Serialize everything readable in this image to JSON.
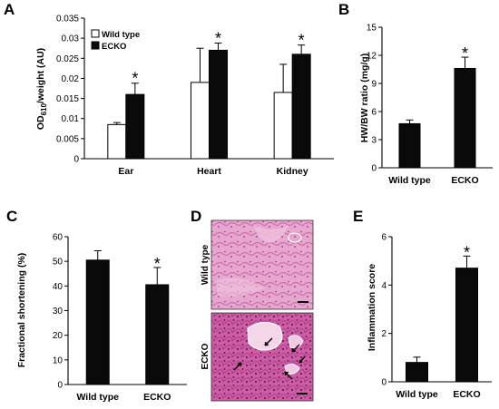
{
  "colors": {
    "black_bar": "#0a0a0a",
    "white_bar": "#ffffff",
    "tissue_pink": "#e7a7cf",
    "tissue_magenta": "#c9509a",
    "tissue_dark": "#7a2a72"
  },
  "panels": {
    "A": {
      "letter": "A"
    },
    "B": {
      "letter": "B"
    },
    "C": {
      "letter": "C"
    },
    "D": {
      "letter": "D",
      "top_label": "Wild type",
      "bottom_label": "ECKO"
    },
    "E": {
      "letter": "E"
    }
  },
  "chart_data": [
    {
      "id": "A",
      "type": "bar",
      "title": "",
      "xlabel": "",
      "ylabel": "OD610/weight (AU)",
      "ylabel_main": "OD",
      "ylabel_sub": "610",
      "ylabel_rest": "/weight (AU)",
      "categories": [
        "Ear",
        "Heart",
        "Kidney"
      ],
      "ylim": [
        0,
        0.035
      ],
      "yticks": [
        "0",
        "0.005",
        "0.01",
        "0.015",
        "0.02",
        "0.025",
        "0.03",
        "0.035"
      ],
      "legend_position": "top-left",
      "series": [
        {
          "name": "Wild type",
          "color": "#ffffff",
          "values": [
            0.0085,
            0.019,
            0.0165
          ],
          "errors": [
            0.0005,
            0.0085,
            0.007
          ]
        },
        {
          "name": "ECKO",
          "color": "#0a0a0a",
          "values": [
            0.016,
            0.027,
            0.026
          ],
          "errors": [
            0.0028,
            0.0018,
            0.0023
          ]
        }
      ],
      "significance": [
        "*",
        "*",
        "*"
      ]
    },
    {
      "id": "B",
      "type": "bar",
      "title": "",
      "xlabel": "",
      "ylabel": "HW/BW ratio (mg/g)",
      "categories": [
        "Wild type",
        "ECKO"
      ],
      "values": [
        4.7,
        10.6
      ],
      "errors": [
        0.4,
        1.2
      ],
      "ylim": [
        0,
        15
      ],
      "yticks": [
        "0",
        "3",
        "6",
        "9",
        "12",
        "15"
      ],
      "significance": [
        "",
        "*"
      ]
    },
    {
      "id": "C",
      "type": "bar",
      "title": "",
      "xlabel": "",
      "ylabel": "Fractional shortening (%)",
      "categories": [
        "Wild type",
        "ECKO"
      ],
      "values": [
        50.5,
        40.5
      ],
      "errors": [
        3.8,
        7.0
      ],
      "ylim": [
        0,
        60
      ],
      "yticks": [
        "0",
        "10",
        "20",
        "30",
        "40",
        "50",
        "60"
      ],
      "significance": [
        "",
        "*"
      ]
    },
    {
      "id": "E",
      "type": "bar",
      "title": "",
      "xlabel": "",
      "ylabel": "Inflammation score",
      "categories": [
        "Wild type",
        "ECKO"
      ],
      "values": [
        0.8,
        4.7
      ],
      "errors": [
        0.22,
        0.5
      ],
      "ylim": [
        0,
        6
      ],
      "yticks": [
        "0",
        "2",
        "4",
        "6"
      ],
      "significance": [
        "",
        "*"
      ]
    }
  ]
}
